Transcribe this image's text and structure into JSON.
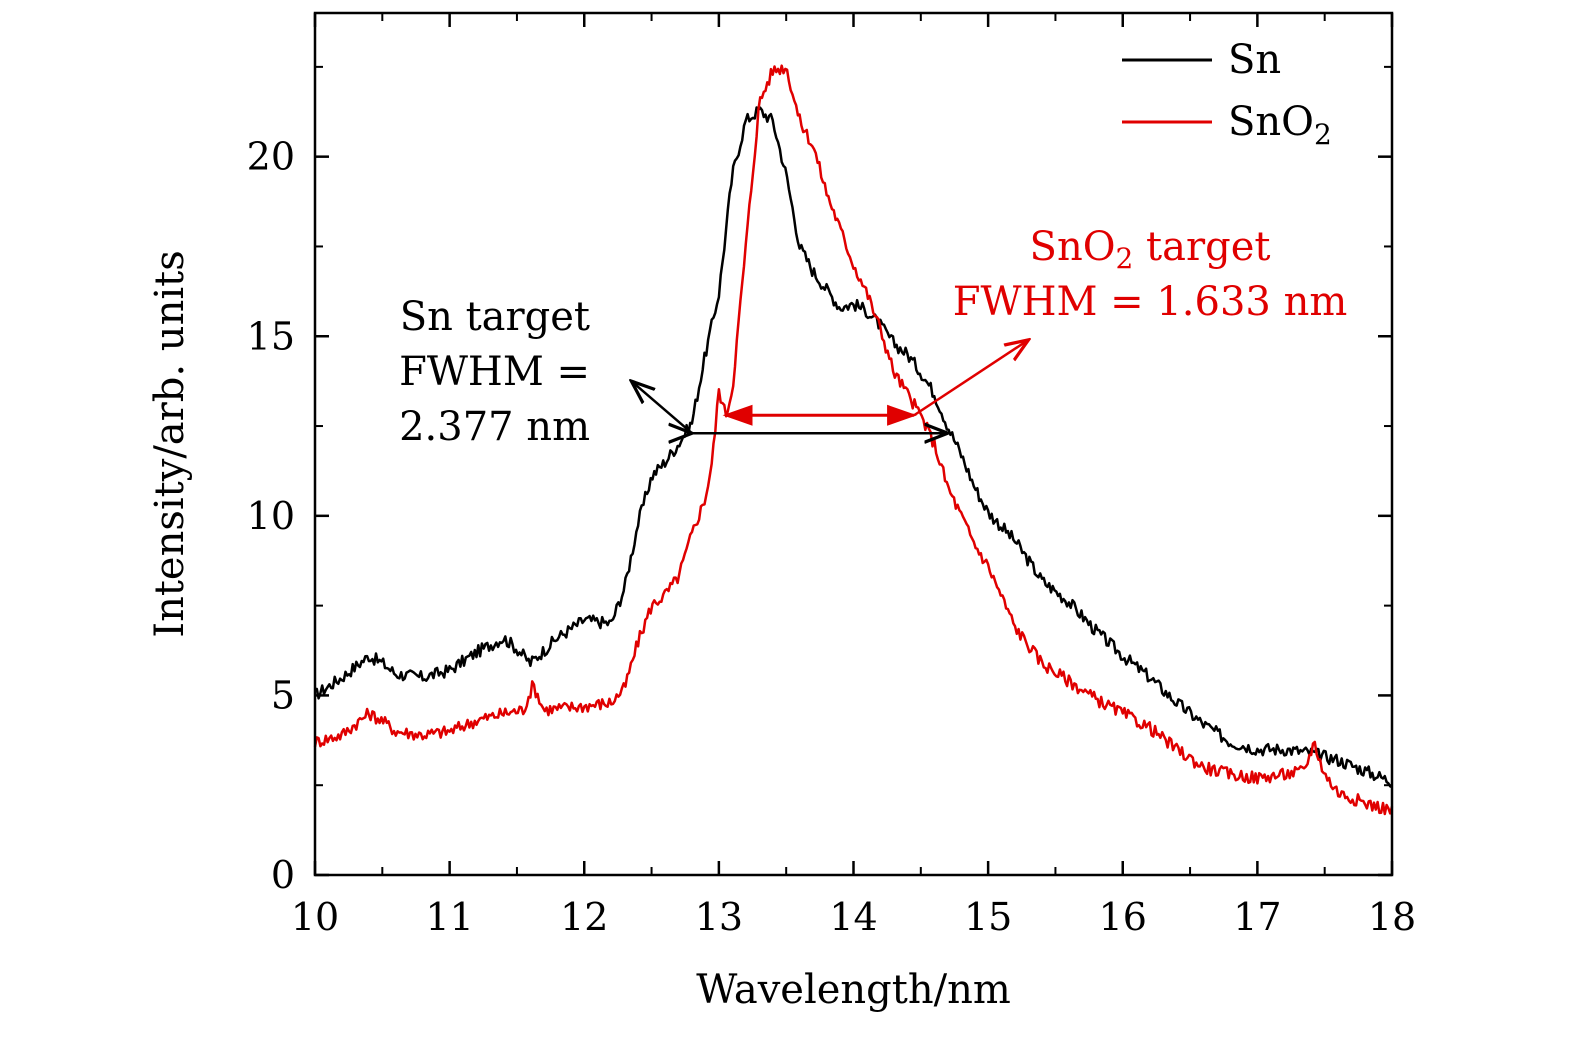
{
  "chart_data": {
    "type": "line",
    "title": "",
    "xlabel": "Wavelength/nm",
    "ylabel": "Intensity/arb. units",
    "xlim": [
      10,
      18
    ],
    "ylim": [
      0,
      24
    ],
    "x_ticks": [
      10,
      11,
      12,
      13,
      14,
      15,
      16,
      17,
      18
    ],
    "x_tick_labels": [
      "10",
      "11",
      "12",
      "13",
      "14",
      "15",
      "16",
      "17",
      "18"
    ],
    "y_ticks": [
      0,
      5,
      10,
      15,
      20
    ],
    "y_tick_labels": [
      "0",
      "5",
      "10",
      "15",
      "20"
    ],
    "grid": false,
    "legend_position": "top-right",
    "series": [
      {
        "name": "Sn",
        "color": "#000000",
        "x": [
          10.0,
          10.2,
          10.4,
          10.5,
          10.6,
          10.8,
          11.0,
          11.2,
          11.4,
          11.5,
          11.6,
          11.8,
          12.0,
          12.2,
          12.3,
          12.4,
          12.5,
          12.6,
          12.7,
          12.8,
          12.9,
          13.0,
          13.1,
          13.2,
          13.3,
          13.4,
          13.5,
          13.6,
          13.7,
          13.8,
          13.9,
          14.0,
          14.1,
          14.2,
          14.3,
          14.4,
          14.5,
          14.6,
          14.7,
          14.8,
          14.9,
          15.0,
          15.2,
          15.4,
          15.6,
          15.8,
          16.0,
          16.2,
          16.4,
          16.6,
          16.8,
          17.0,
          17.2,
          17.4,
          17.6,
          17.8,
          18.0
        ],
        "y": [
          5.0,
          5.5,
          6.1,
          5.9,
          5.6,
          5.5,
          5.7,
          6.2,
          6.6,
          6.3,
          5.9,
          6.6,
          7.1,
          7.0,
          8.0,
          9.8,
          11.1,
          11.5,
          12.0,
          12.6,
          14.5,
          16.2,
          19.5,
          21.0,
          21.3,
          21.0,
          19.5,
          17.5,
          16.8,
          16.3,
          15.8,
          15.9,
          15.7,
          15.3,
          14.8,
          14.5,
          14.0,
          13.4,
          12.5,
          11.7,
          10.8,
          10.1,
          9.3,
          8.2,
          7.6,
          6.8,
          6.1,
          5.5,
          4.8,
          4.2,
          3.7,
          3.5,
          3.5,
          3.4,
          3.2,
          2.9,
          2.6
        ]
      },
      {
        "name": "SnO2",
        "color": "#e00000",
        "x": [
          10.0,
          10.2,
          10.4,
          10.5,
          10.6,
          10.8,
          11.0,
          11.2,
          11.4,
          11.55,
          11.62,
          11.7,
          12.0,
          12.2,
          12.3,
          12.4,
          12.5,
          12.6,
          12.7,
          12.8,
          12.9,
          12.95,
          13.0,
          13.05,
          13.1,
          13.2,
          13.3,
          13.4,
          13.5,
          13.6,
          13.7,
          13.8,
          13.9,
          14.0,
          14.1,
          14.2,
          14.3,
          14.4,
          14.5,
          14.6,
          14.7,
          14.8,
          14.9,
          15.0,
          15.2,
          15.4,
          15.6,
          15.8,
          16.0,
          16.2,
          16.4,
          16.6,
          16.8,
          17.0,
          17.2,
          17.35,
          17.42,
          17.5,
          17.6,
          17.8,
          18.0
        ],
        "y": [
          3.7,
          3.9,
          4.5,
          4.3,
          4.0,
          3.9,
          4.0,
          4.3,
          4.5,
          4.6,
          5.3,
          4.6,
          4.7,
          4.8,
          5.2,
          6.5,
          7.5,
          7.8,
          8.3,
          9.5,
          10.5,
          11.5,
          13.5,
          12.8,
          13.5,
          17.5,
          21.5,
          22.4,
          22.5,
          21.0,
          20.3,
          19.0,
          18.0,
          17.0,
          16.2,
          15.2,
          14.0,
          13.4,
          12.8,
          12.0,
          10.8,
          10.0,
          9.2,
          8.6,
          6.9,
          5.9,
          5.4,
          4.9,
          4.5,
          4.1,
          3.5,
          3.0,
          2.8,
          2.7,
          2.8,
          2.9,
          3.7,
          2.8,
          2.3,
          2.0,
          1.8
        ]
      }
    ],
    "legend": [
      {
        "label": "Sn",
        "sub": "",
        "color": "#000000"
      },
      {
        "label": "SnO",
        "sub": "2",
        "color": "#e00000"
      }
    ],
    "annotations": {
      "sn": {
        "line1": "Sn target",
        "line2": "FWHM =",
        "line3": "2.377 nm",
        "color": "#000000",
        "fwhm_x": [
          12.8,
          14.7
        ],
        "fwhm_y": 12.3,
        "pointer_from": [
          12.8,
          12.3
        ],
        "pointer_to": [
          12.35,
          13.75
        ]
      },
      "sno2": {
        "line1_main": "SnO",
        "line1_sub": "2",
        "line1_rest": " target",
        "line2": "FWHM = 1.633 nm",
        "color": "#e00000",
        "fwhm_x": [
          13.05,
          14.45
        ],
        "fwhm_y": 12.8,
        "pointer_from": [
          14.45,
          12.8
        ],
        "pointer_to": [
          15.3,
          14.9
        ]
      }
    }
  }
}
